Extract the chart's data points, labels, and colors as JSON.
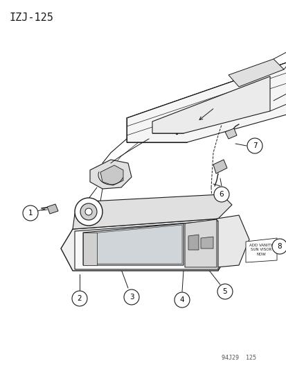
{
  "title_label": "IZJ-125",
  "footer_label": "94J29  125",
  "background_color": "#ffffff",
  "line_color": "#1a1a1a",
  "fig_width": 4.14,
  "fig_height": 5.33,
  "dpi": 100,
  "title_fontsize": 11,
  "footer_fontsize": 6,
  "note_text": "ADD VANITY\nSUN VISOR\nNOW"
}
